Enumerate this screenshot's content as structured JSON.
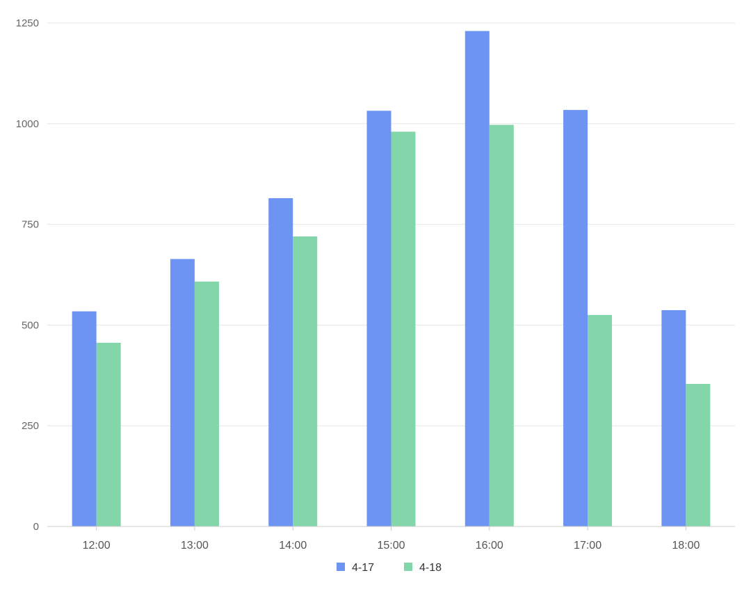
{
  "chart_data": {
    "type": "bar",
    "title": "",
    "xlabel": "",
    "ylabel": "",
    "categories": [
      "12:00",
      "13:00",
      "14:00",
      "15:00",
      "16:00",
      "17:00",
      "18:00"
    ],
    "series": [
      {
        "name": "4-17",
        "color": "#6d94f2",
        "values": [
          534,
          664,
          815,
          1032,
          1230,
          1034,
          537
        ]
      },
      {
        "name": "4-18",
        "color": "#82d6aa",
        "values": [
          456,
          608,
          720,
          980,
          997,
          525,
          354
        ]
      }
    ],
    "ylim": [
      0,
      1250
    ],
    "yticks": [
      0,
      250,
      500,
      750,
      1000,
      1250
    ],
    "grid": true,
    "legend_position": "bottom-center"
  }
}
